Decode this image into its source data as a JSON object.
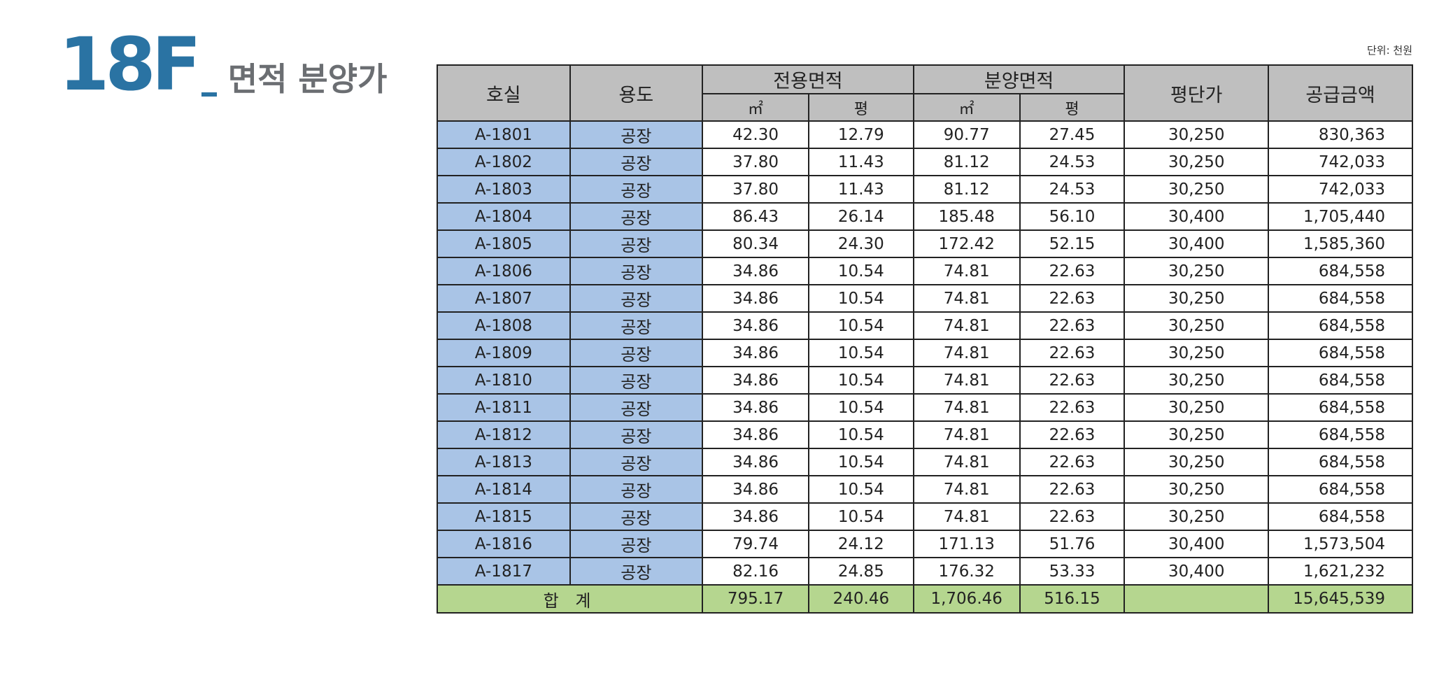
{
  "title": {
    "floor": "18F",
    "subtitle": "면적 분양가"
  },
  "unit_note": "단위: 천원",
  "table": {
    "headers": {
      "room": "호실",
      "use": "용도",
      "exclusive_area": "전용면적",
      "sale_area": "분양면적",
      "sqm": "㎡",
      "pyeong": "평",
      "price_per_pyeong": "평단가",
      "supply_amount": "공급금액"
    },
    "rows": [
      {
        "room": "A-1801",
        "use": "공장",
        "ex_sqm": "42.30",
        "ex_py": "12.79",
        "sa_sqm": "90.77",
        "sa_py": "27.45",
        "price": "30,250",
        "amount": "830,363"
      },
      {
        "room": "A-1802",
        "use": "공장",
        "ex_sqm": "37.80",
        "ex_py": "11.43",
        "sa_sqm": "81.12",
        "sa_py": "24.53",
        "price": "30,250",
        "amount": "742,033"
      },
      {
        "room": "A-1803",
        "use": "공장",
        "ex_sqm": "37.80",
        "ex_py": "11.43",
        "sa_sqm": "81.12",
        "sa_py": "24.53",
        "price": "30,250",
        "amount": "742,033"
      },
      {
        "room": "A-1804",
        "use": "공장",
        "ex_sqm": "86.43",
        "ex_py": "26.14",
        "sa_sqm": "185.48",
        "sa_py": "56.10",
        "price": "30,400",
        "amount": "1,705,440"
      },
      {
        "room": "A-1805",
        "use": "공장",
        "ex_sqm": "80.34",
        "ex_py": "24.30",
        "sa_sqm": "172.42",
        "sa_py": "52.15",
        "price": "30,400",
        "amount": "1,585,360"
      },
      {
        "room": "A-1806",
        "use": "공장",
        "ex_sqm": "34.86",
        "ex_py": "10.54",
        "sa_sqm": "74.81",
        "sa_py": "22.63",
        "price": "30,250",
        "amount": "684,558"
      },
      {
        "room": "A-1807",
        "use": "공장",
        "ex_sqm": "34.86",
        "ex_py": "10.54",
        "sa_sqm": "74.81",
        "sa_py": "22.63",
        "price": "30,250",
        "amount": "684,558"
      },
      {
        "room": "A-1808",
        "use": "공장",
        "ex_sqm": "34.86",
        "ex_py": "10.54",
        "sa_sqm": "74.81",
        "sa_py": "22.63",
        "price": "30,250",
        "amount": "684,558"
      },
      {
        "room": "A-1809",
        "use": "공장",
        "ex_sqm": "34.86",
        "ex_py": "10.54",
        "sa_sqm": "74.81",
        "sa_py": "22.63",
        "price": "30,250",
        "amount": "684,558"
      },
      {
        "room": "A-1810",
        "use": "공장",
        "ex_sqm": "34.86",
        "ex_py": "10.54",
        "sa_sqm": "74.81",
        "sa_py": "22.63",
        "price": "30,250",
        "amount": "684,558"
      },
      {
        "room": "A-1811",
        "use": "공장",
        "ex_sqm": "34.86",
        "ex_py": "10.54",
        "sa_sqm": "74.81",
        "sa_py": "22.63",
        "price": "30,250",
        "amount": "684,558"
      },
      {
        "room": "A-1812",
        "use": "공장",
        "ex_sqm": "34.86",
        "ex_py": "10.54",
        "sa_sqm": "74.81",
        "sa_py": "22.63",
        "price": "30,250",
        "amount": "684,558"
      },
      {
        "room": "A-1813",
        "use": "공장",
        "ex_sqm": "34.86",
        "ex_py": "10.54",
        "sa_sqm": "74.81",
        "sa_py": "22.63",
        "price": "30,250",
        "amount": "684,558"
      },
      {
        "room": "A-1814",
        "use": "공장",
        "ex_sqm": "34.86",
        "ex_py": "10.54",
        "sa_sqm": "74.81",
        "sa_py": "22.63",
        "price": "30,250",
        "amount": "684,558"
      },
      {
        "room": "A-1815",
        "use": "공장",
        "ex_sqm": "34.86",
        "ex_py": "10.54",
        "sa_sqm": "74.81",
        "sa_py": "22.63",
        "price": "30,250",
        "amount": "684,558"
      },
      {
        "room": "A-1816",
        "use": "공장",
        "ex_sqm": "79.74",
        "ex_py": "24.12",
        "sa_sqm": "171.13",
        "sa_py": "51.76",
        "price": "30,400",
        "amount": "1,573,504"
      },
      {
        "room": "A-1817",
        "use": "공장",
        "ex_sqm": "82.16",
        "ex_py": "24.85",
        "sa_sqm": "176.32",
        "sa_py": "53.33",
        "price": "30,400",
        "amount": "1,621,232"
      }
    ],
    "total": {
      "label": "합 계",
      "ex_sqm": "795.17",
      "ex_py": "240.46",
      "sa_sqm": "1,706.46",
      "sa_py": "516.15",
      "price": "",
      "amount": "15,645,539"
    }
  },
  "colors": {
    "title_blue": "#2a73a3",
    "subtitle_gray": "#6b6e72",
    "header_gray": "#bfbfbf",
    "room_blue": "#a9c4e6",
    "total_green": "#b5d68f"
  }
}
